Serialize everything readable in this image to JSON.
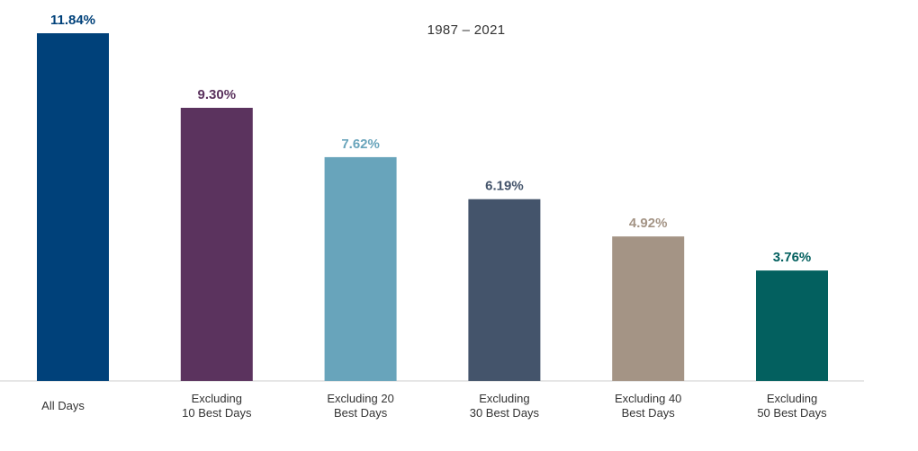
{
  "chart_data": {
    "type": "bar",
    "title": "1987 – 2021",
    "categories": [
      [
        "All Days"
      ],
      [
        "Excluding",
        "10 Best Days"
      ],
      [
        "Excluding 20",
        "Best Days"
      ],
      [
        "Excluding",
        "30 Best Days"
      ],
      [
        "Excluding 40",
        "Best Days"
      ],
      [
        "Excluding",
        "50 Best Days"
      ]
    ],
    "values": [
      11.84,
      9.3,
      7.62,
      6.19,
      4.92,
      3.76
    ],
    "value_labels": [
      "11.84%",
      "9.30%",
      "7.62%",
      "6.19%",
      "4.92%",
      "3.76%"
    ],
    "colors": [
      "#00417a",
      "#5b335e",
      "#68a4bb",
      "#44546b",
      "#a49485",
      "#03605f"
    ],
    "label_colors": [
      "#00417a",
      "#5b335e",
      "#68a4bb",
      "#44546b",
      "#a49485",
      "#03605f"
    ],
    "xlabel": "",
    "ylabel": "",
    "ylim": [
      0,
      11.84
    ],
    "grid": false,
    "legend": "none"
  }
}
